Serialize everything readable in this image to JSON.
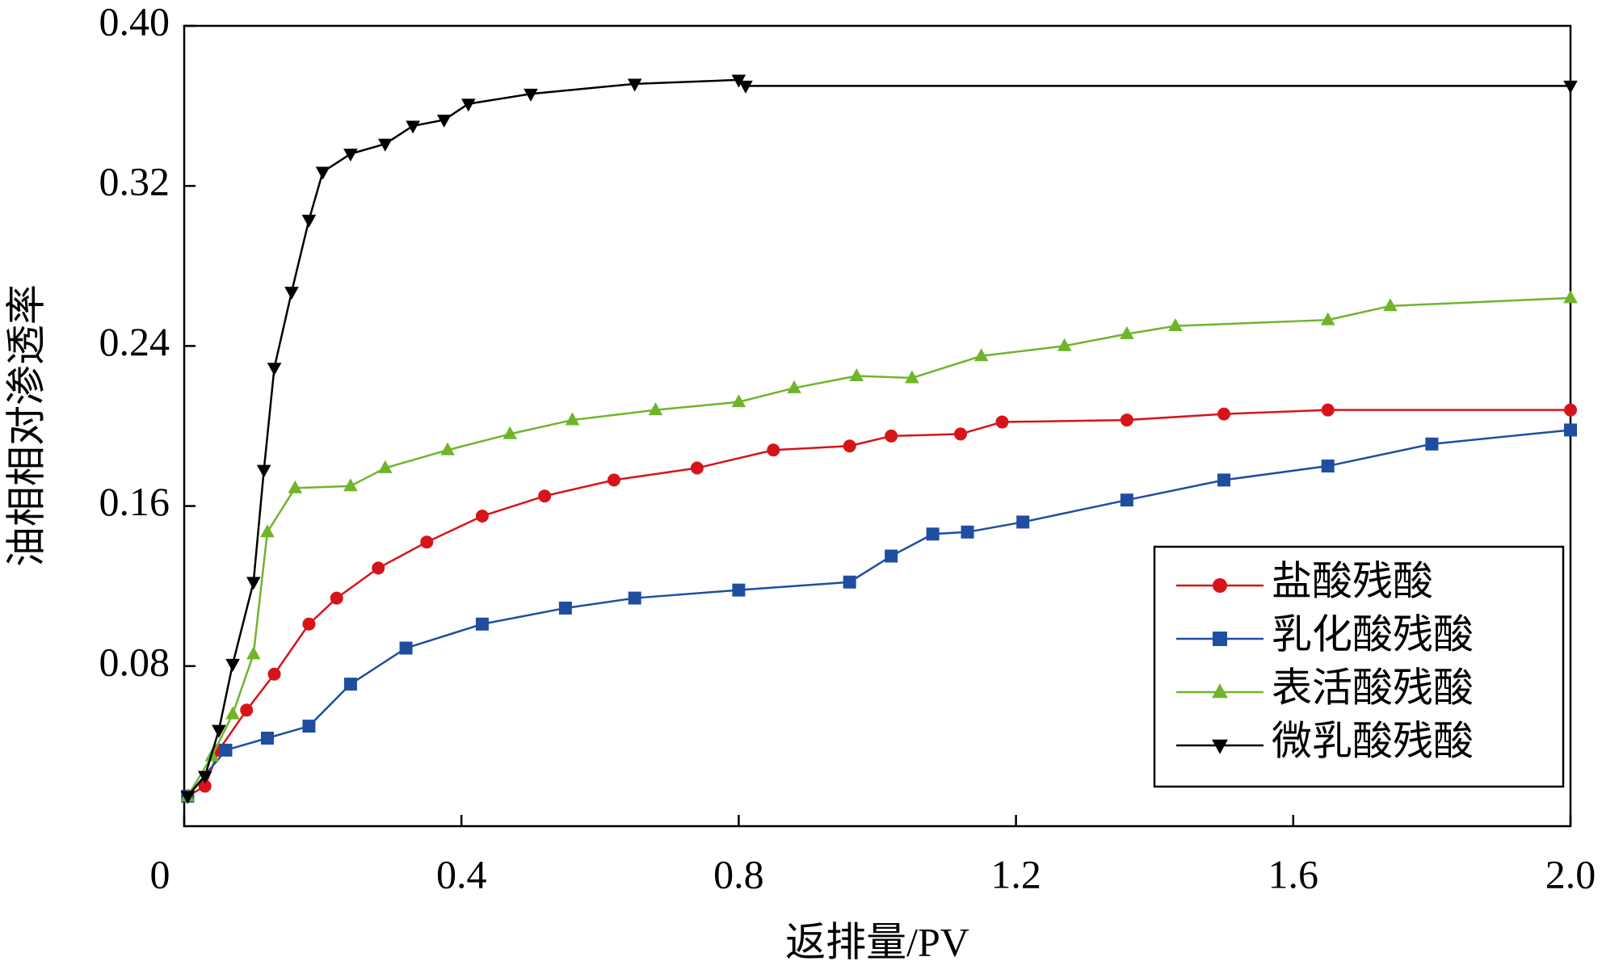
{
  "chart_data": {
    "type": "line",
    "x_label": "返排量/PV",
    "y_label": "油相相对渗透率",
    "xlim": [
      0,
      2
    ],
    "ylim": [
      0,
      0.4
    ],
    "xticks": [
      0,
      0.4,
      0.8,
      1.2,
      1.6,
      {
        "value": 2,
        "label": "2.0"
      }
    ],
    "yticks": [
      0.08,
      0.16,
      0.24,
      0.32,
      {
        "value": 0.4,
        "label": "0.40"
      }
    ],
    "legend": "lower right",
    "series": [
      {
        "name": "盐酸残酸",
        "color": "#d7141a",
        "marker": "circle",
        "x": [
          0.005,
          0.03,
          0.05,
          0.09,
          0.13,
          0.18,
          0.22,
          0.28,
          0.35,
          0.43,
          0.52,
          0.62,
          0.74,
          0.85,
          0.96,
          1.02,
          1.12,
          1.18,
          1.36,
          1.5,
          1.65,
          2.0
        ],
        "values": [
          0.015,
          0.02,
          0.038,
          0.058,
          0.076,
          0.101,
          0.114,
          0.129,
          0.142,
          0.155,
          0.165,
          0.173,
          0.179,
          0.188,
          0.19,
          0.195,
          0.196,
          0.202,
          0.203,
          0.206,
          0.208,
          0.208
        ]
      },
      {
        "name": "乳化酸残酸",
        "color": "#1f4ea1",
        "marker": "square",
        "x": [
          0.005,
          0.06,
          0.12,
          0.18,
          0.24,
          0.32,
          0.43,
          0.55,
          0.65,
          0.8,
          0.96,
          1.02,
          1.08,
          1.13,
          1.21,
          1.36,
          1.5,
          1.65,
          1.8,
          2.0
        ],
        "values": [
          0.015,
          0.038,
          0.044,
          0.05,
          0.071,
          0.089,
          0.101,
          0.109,
          0.114,
          0.118,
          0.122,
          0.135,
          0.146,
          0.147,
          0.152,
          0.163,
          0.173,
          0.18,
          0.191,
          0.198
        ]
      },
      {
        "name": "表活酸残酸",
        "color": "#6fb52c",
        "marker": "triangle",
        "x": [
          0.005,
          0.04,
          0.07,
          0.1,
          0.12,
          0.16,
          0.24,
          0.29,
          0.38,
          0.47,
          0.56,
          0.68,
          0.8,
          0.88,
          0.97,
          1.05,
          1.15,
          1.27,
          1.36,
          1.43,
          1.65,
          1.74,
          2.0
        ],
        "values": [
          0.015,
          0.035,
          0.056,
          0.086,
          0.147,
          0.169,
          0.17,
          0.179,
          0.188,
          0.196,
          0.203,
          0.208,
          0.212,
          0.219,
          0.225,
          0.224,
          0.235,
          0.24,
          0.246,
          0.25,
          0.253,
          0.26,
          0.264
        ]
      },
      {
        "name": "微乳酸残酸",
        "color": "#000000",
        "marker": "triangle-down",
        "x": [
          0.005,
          0.03,
          0.05,
          0.07,
          0.1,
          0.115,
          0.13,
          0.155,
          0.18,
          0.2,
          0.24,
          0.29,
          0.33,
          0.375,
          0.41,
          0.5,
          0.65,
          0.8,
          0.81,
          2.0
        ],
        "values": [
          0.015,
          0.025,
          0.048,
          0.081,
          0.122,
          0.178,
          0.229,
          0.267,
          0.303,
          0.327,
          0.336,
          0.341,
          0.35,
          0.353,
          0.361,
          0.366,
          0.371,
          0.373,
          0.37,
          0.37
        ]
      }
    ]
  }
}
